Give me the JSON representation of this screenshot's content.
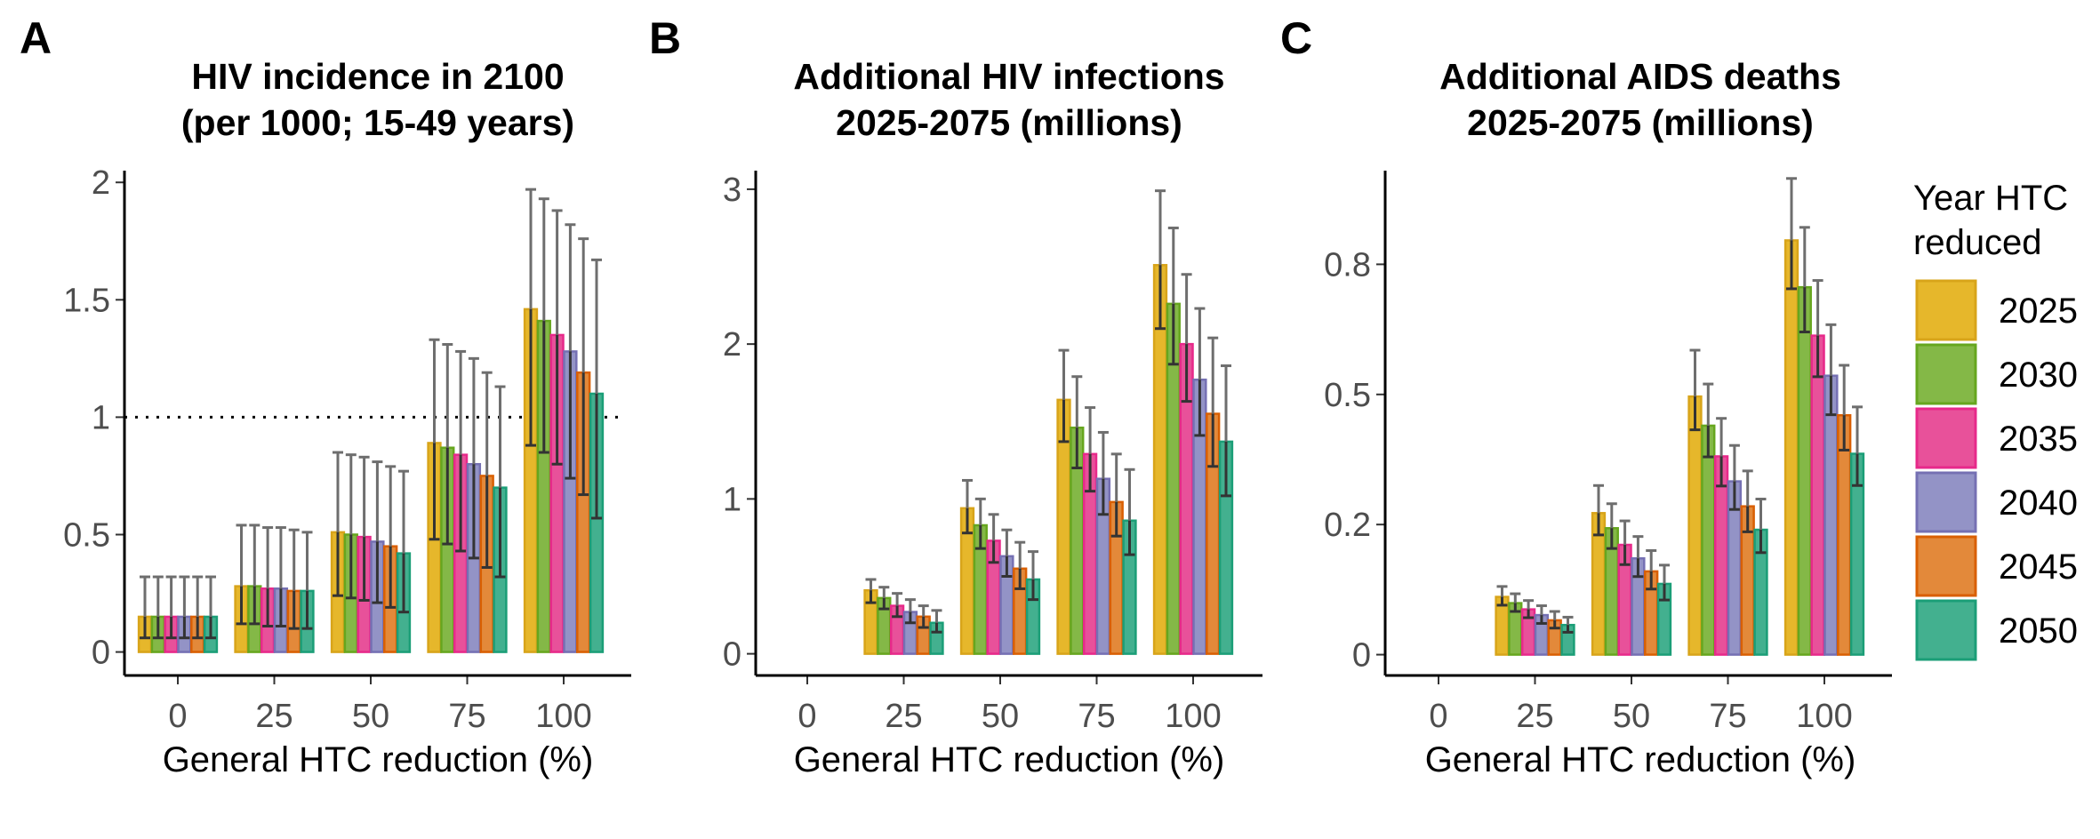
{
  "legend": {
    "title_lines": [
      "Year HTC",
      "reduced"
    ],
    "items": [
      {
        "label": "2025",
        "fill": "#E6B72B",
        "stroke": "#D8A41A"
      },
      {
        "label": "2030",
        "fill": "#84B847",
        "stroke": "#66A61E"
      },
      {
        "label": "2035",
        "fill": "#E8519A",
        "stroke": "#E7298A"
      },
      {
        "label": "2040",
        "fill": "#9393C6",
        "stroke": "#7570B3"
      },
      {
        "label": "2045",
        "fill": "#E3893A",
        "stroke": "#D95F02"
      },
      {
        "label": "2050",
        "fill": "#43B08F",
        "stroke": "#1B9E77"
      }
    ]
  },
  "chart_data": [
    {
      "panel": "A",
      "type": "bar",
      "title_lines": [
        "HIV incidence in 2100",
        "(per 1000; 15-49 years)"
      ],
      "xlabel": "General HTC reduction (%)",
      "ylabel": "",
      "categories": [
        "0",
        "25",
        "50",
        "75",
        "100"
      ],
      "ylim": [
        -0.1,
        2.05
      ],
      "yticks": [
        0,
        0.5,
        1,
        1.5,
        2
      ],
      "ytick_labels": [
        "0",
        "0.5",
        "1",
        "1.5",
        "2"
      ],
      "reference_line": {
        "y": 1,
        "style": "dotted"
      },
      "series": [
        {
          "name": "2025",
          "values": [
            0.15,
            0.28,
            0.51,
            0.89,
            1.46
          ],
          "lower": [
            0.06,
            0.12,
            0.24,
            0.48,
            0.88
          ],
          "upper": [
            0.32,
            0.54,
            0.85,
            1.33,
            1.97
          ]
        },
        {
          "name": "2030",
          "values": [
            0.15,
            0.28,
            0.5,
            0.87,
            1.41
          ],
          "lower": [
            0.06,
            0.12,
            0.23,
            0.46,
            0.85
          ],
          "upper": [
            0.32,
            0.54,
            0.84,
            1.31,
            1.93
          ]
        },
        {
          "name": "2035",
          "values": [
            0.15,
            0.27,
            0.49,
            0.84,
            1.35
          ],
          "lower": [
            0.06,
            0.11,
            0.22,
            0.43,
            0.8
          ],
          "upper": [
            0.32,
            0.53,
            0.83,
            1.28,
            1.88
          ]
        },
        {
          "name": "2040",
          "values": [
            0.15,
            0.27,
            0.47,
            0.8,
            1.28
          ],
          "lower": [
            0.06,
            0.11,
            0.21,
            0.4,
            0.74
          ],
          "upper": [
            0.32,
            0.53,
            0.81,
            1.25,
            1.82
          ]
        },
        {
          "name": "2045",
          "values": [
            0.15,
            0.26,
            0.45,
            0.75,
            1.19
          ],
          "lower": [
            0.06,
            0.1,
            0.19,
            0.36,
            0.67
          ],
          "upper": [
            0.32,
            0.52,
            0.79,
            1.19,
            1.76
          ]
        },
        {
          "name": "2050",
          "values": [
            0.15,
            0.26,
            0.42,
            0.7,
            1.1
          ],
          "lower": [
            0.06,
            0.1,
            0.17,
            0.32,
            0.57
          ],
          "upper": [
            0.32,
            0.51,
            0.77,
            1.13,
            1.67
          ]
        }
      ]
    },
    {
      "panel": "B",
      "type": "bar",
      "title_lines": [
        "Additional HIV infections",
        "2025-2075 (millions)"
      ],
      "xlabel": "General HTC reduction (%)",
      "ylabel": "",
      "categories": [
        "0",
        "25",
        "50",
        "75",
        "100"
      ],
      "ylim": [
        -0.14,
        3.12
      ],
      "yticks": [
        0,
        1,
        2,
        3
      ],
      "ytick_labels": [
        "0",
        "1",
        "2",
        "3"
      ],
      "series": [
        {
          "name": "2025",
          "values": [
            0,
            0.41,
            0.94,
            1.64,
            2.51
          ],
          "lower": [
            0,
            0.33,
            0.78,
            1.37,
            2.1
          ],
          "upper": [
            0,
            0.48,
            1.12,
            1.96,
            2.99
          ]
        },
        {
          "name": "2030",
          "values": [
            0,
            0.36,
            0.83,
            1.46,
            2.26
          ],
          "lower": [
            0,
            0.29,
            0.68,
            1.2,
            1.87
          ],
          "upper": [
            0,
            0.43,
            1.0,
            1.79,
            2.75
          ]
        },
        {
          "name": "2035",
          "values": [
            0,
            0.31,
            0.73,
            1.29,
            2.0
          ],
          "lower": [
            0,
            0.24,
            0.59,
            1.05,
            1.63
          ],
          "upper": [
            0,
            0.39,
            0.9,
            1.59,
            2.45
          ]
        },
        {
          "name": "2040",
          "values": [
            0,
            0.27,
            0.63,
            1.13,
            1.77
          ],
          "lower": [
            0,
            0.2,
            0.5,
            0.9,
            1.41
          ],
          "upper": [
            0,
            0.35,
            0.8,
            1.43,
            2.23
          ]
        },
        {
          "name": "2045",
          "values": [
            0,
            0.24,
            0.55,
            0.98,
            1.55
          ],
          "lower": [
            0,
            0.17,
            0.42,
            0.76,
            1.21
          ],
          "upper": [
            0,
            0.31,
            0.72,
            1.29,
            2.04
          ]
        },
        {
          "name": "2050",
          "values": [
            0,
            0.2,
            0.48,
            0.86,
            1.37
          ],
          "lower": [
            0,
            0.14,
            0.35,
            0.64,
            1.02
          ],
          "upper": [
            0,
            0.28,
            0.66,
            1.19,
            1.86
          ]
        }
      ]
    },
    {
      "panel": "C",
      "type": "bar",
      "title_lines": [
        "Additional AIDS deaths",
        "2025-2075 (millions)"
      ],
      "xlabel": "General HTC reduction (%)",
      "ylabel": "",
      "categories": [
        "0",
        "25",
        "50",
        "75",
        "100"
      ],
      "ylim": [
        -0.04,
        0.93
      ],
      "yticks": [
        0,
        0.25,
        0.5,
        0.75
      ],
      "ytick_labels": [
        "0",
        "0.2",
        "0.5",
        "0.8"
      ],
      "series": [
        {
          "name": "2025",
          "values": [
            0,
            0.111,
            0.272,
            0.496,
            0.796
          ],
          "lower": [
            0,
            0.095,
            0.23,
            0.432,
            0.703
          ],
          "upper": [
            0,
            0.131,
            0.325,
            0.585,
            0.915
          ]
        },
        {
          "name": "2030",
          "values": [
            0,
            0.099,
            0.243,
            0.44,
            0.706
          ],
          "lower": [
            0,
            0.083,
            0.204,
            0.38,
            0.62
          ],
          "upper": [
            0,
            0.117,
            0.29,
            0.52,
            0.821
          ]
        },
        {
          "name": "2035",
          "values": [
            0,
            0.087,
            0.211,
            0.381,
            0.613
          ],
          "lower": [
            0,
            0.071,
            0.173,
            0.324,
            0.534
          ],
          "upper": [
            0,
            0.104,
            0.257,
            0.454,
            0.719
          ]
        },
        {
          "name": "2040",
          "values": [
            0,
            0.076,
            0.185,
            0.333,
            0.536
          ],
          "lower": [
            0,
            0.06,
            0.15,
            0.279,
            0.461
          ],
          "upper": [
            0,
            0.094,
            0.227,
            0.402,
            0.634
          ]
        },
        {
          "name": "2045",
          "values": [
            0,
            0.066,
            0.16,
            0.285,
            0.46
          ],
          "lower": [
            0,
            0.051,
            0.126,
            0.236,
            0.393
          ],
          "upper": [
            0,
            0.083,
            0.2,
            0.353,
            0.556
          ]
        },
        {
          "name": "2050",
          "values": [
            0,
            0.057,
            0.136,
            0.24,
            0.386
          ],
          "lower": [
            0,
            0.043,
            0.105,
            0.196,
            0.325
          ],
          "upper": [
            0,
            0.072,
            0.172,
            0.299,
            0.476
          ]
        }
      ]
    }
  ]
}
